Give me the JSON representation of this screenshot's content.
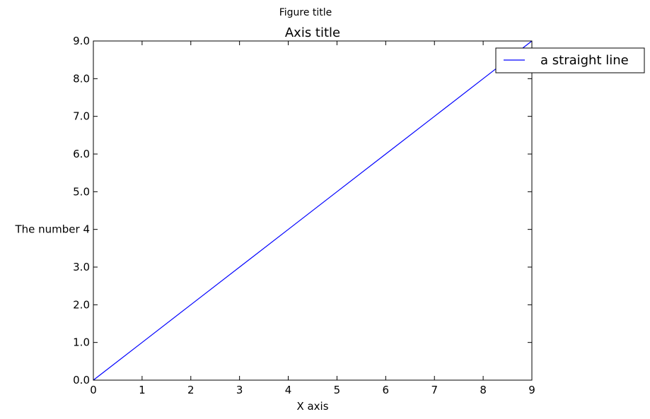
{
  "chart_data": {
    "type": "line",
    "figure_title": "Figure title",
    "title": "Axis title",
    "xlabel": "X axis",
    "ylabel": "",
    "xlim": [
      0,
      9
    ],
    "ylim": [
      0,
      9
    ],
    "grid": false,
    "legend_placement": "top-right, extending outside the axes",
    "x_ticks": [
      {
        "value": 0,
        "label": "0"
      },
      {
        "value": 1,
        "label": "1"
      },
      {
        "value": 2,
        "label": "2"
      },
      {
        "value": 3,
        "label": "3"
      },
      {
        "value": 4,
        "label": "4"
      },
      {
        "value": 5,
        "label": "5"
      },
      {
        "value": 6,
        "label": "6"
      },
      {
        "value": 7,
        "label": "7"
      },
      {
        "value": 8,
        "label": "8"
      },
      {
        "value": 9,
        "label": "9"
      }
    ],
    "y_ticks": [
      {
        "value": 0,
        "label": "0.0"
      },
      {
        "value": 1,
        "label": "1.0"
      },
      {
        "value": 2,
        "label": "2.0"
      },
      {
        "value": 3,
        "label": "3.0"
      },
      {
        "value": 4,
        "label": "The number 4"
      },
      {
        "value": 5,
        "label": "5.0"
      },
      {
        "value": 6,
        "label": "6.0"
      },
      {
        "value": 7,
        "label": "7.0"
      },
      {
        "value": 8,
        "label": "8.0"
      },
      {
        "value": 9,
        "label": "9.0"
      }
    ],
    "series": [
      {
        "name": "a straight line",
        "color": "#0000ff",
        "x": [
          0,
          1,
          2,
          3,
          4,
          5,
          6,
          7,
          8,
          9
        ],
        "y": [
          0,
          1,
          2,
          3,
          4,
          5,
          6,
          7,
          8,
          9
        ]
      }
    ]
  }
}
